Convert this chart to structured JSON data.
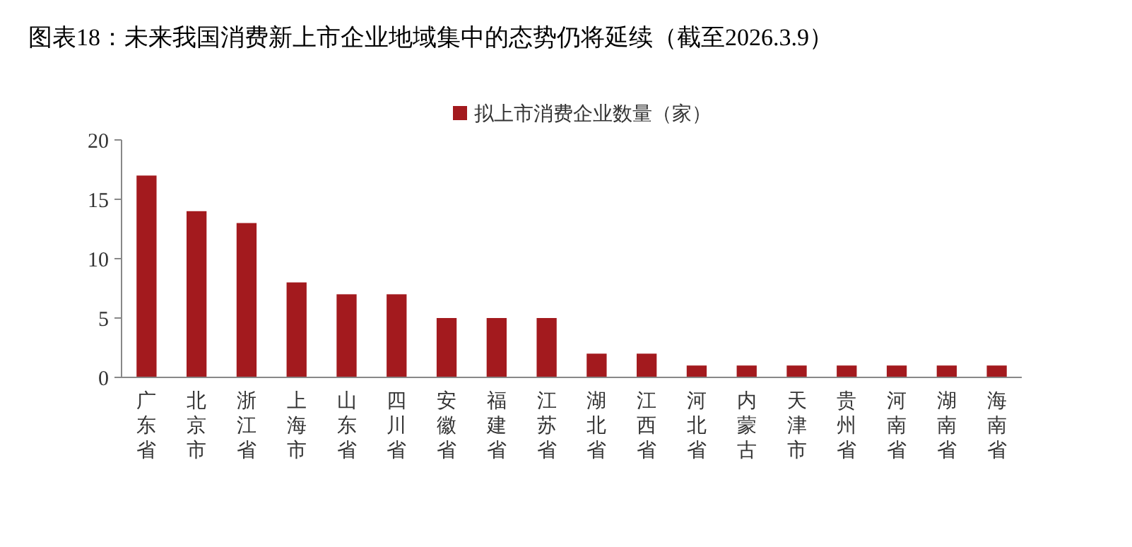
{
  "chart_data": {
    "type": "bar",
    "title": "图表18：未来我国消费新上市企业地域集中的态势仍将延续（截至2026.3.9）",
    "categories": [
      "广东省",
      "北京市",
      "浙江省",
      "上海市",
      "山东省",
      "四川省",
      "安徽省",
      "福建省",
      "江苏省",
      "湖北省",
      "江西省",
      "河北省",
      "内蒙古",
      "天津市",
      "贵州省",
      "河南省",
      "湖南省",
      "海南省"
    ],
    "series": [
      {
        "name": "拟上市消费企业数量（家）",
        "color": "#a31a1e",
        "values": [
          17,
          14,
          13,
          8,
          7,
          7,
          5,
          5,
          5,
          2,
          2,
          1,
          1,
          1,
          1,
          1,
          1,
          1
        ]
      }
    ],
    "ylim": [
      0,
      20
    ],
    "yticks": [
      0,
      5,
      10,
      15,
      20
    ],
    "grid": false,
    "legend": "top"
  }
}
